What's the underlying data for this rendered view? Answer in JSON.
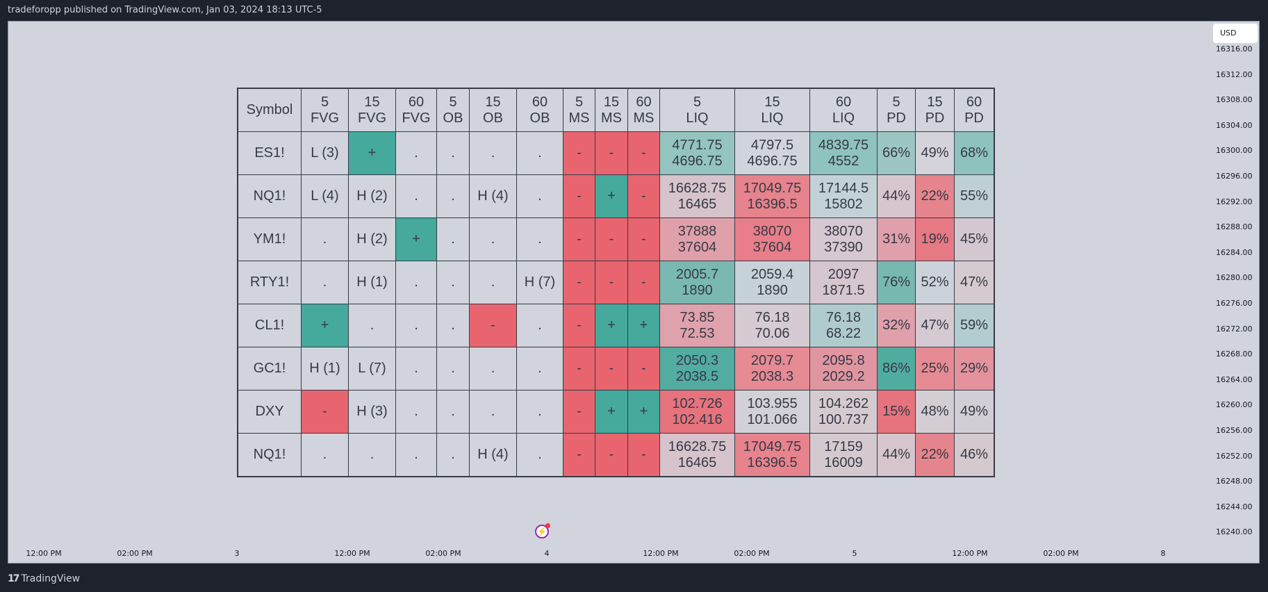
{
  "header": {
    "published": "tradeforopp published on TradingView.com, Jan 03, 2024 18:13 UTC-5"
  },
  "price_axis": {
    "currency": "USD",
    "labels": [
      "16316.00",
      "16312.00",
      "16308.00",
      "16304.00",
      "16300.00",
      "16296.00",
      "16292.00",
      "16288.00",
      "16284.00",
      "16280.00",
      "16276.00",
      "16272.00",
      "16268.00",
      "16264.00",
      "16260.00",
      "16256.00",
      "16252.00",
      "16248.00",
      "16244.00",
      "16240.00"
    ]
  },
  "time_axis": {
    "labels": [
      "12:00 PM",
      "02:00 PM",
      "3",
      "12:00 PM",
      "02:00 PM",
      "4",
      "12:00 PM",
      "02:00 PM",
      "5",
      "12:00 PM",
      "02:00 PM",
      "8"
    ]
  },
  "footer": {
    "brand": "TradingView",
    "logo_mark": "17"
  },
  "colors": {
    "bull": "#45a99b",
    "bear": "#e8656f",
    "neutral": "#d1d4dc",
    "grid": "#363a45",
    "text": "#363a45"
  },
  "table": {
    "headers": [
      "Symbol",
      "5\nFVG",
      "15\nFVG",
      "60\nFVG",
      "5\nOB",
      "15\nOB",
      "60\nOB",
      "5\nMS",
      "15\nMS",
      "60\nMS",
      "5\nLIQ",
      "15\nLIQ",
      "60\nLIQ",
      "5\nPD",
      "15\nPD",
      "60\nPD"
    ],
    "rows": [
      [
        {
          "t": "ES1!"
        },
        {
          "t": "L (3)"
        },
        {
          "t": "+",
          "bg": "#45a99b"
        },
        {
          "t": "."
        },
        {
          "t": "."
        },
        {
          "t": "."
        },
        {
          "t": "."
        },
        {
          "t": "-",
          "bg": "#e8656f"
        },
        {
          "t": "-",
          "bg": "#e8656f"
        },
        {
          "t": "-",
          "bg": "#e8656f"
        },
        {
          "t": "4771.75\n4696.75",
          "bg": "#94c4c0"
        },
        {
          "t": "4797.5\n4696.75",
          "bg": "#d1d4dc"
        },
        {
          "t": "4839.75\n4552",
          "bg": "#8fc3bf"
        },
        {
          "t": "66%",
          "bg": "#9cc6c3"
        },
        {
          "t": "49%",
          "bg": "#d4d2da"
        },
        {
          "t": "68%",
          "bg": "#8ec2be"
        }
      ],
      [
        {
          "t": "NQ1!"
        },
        {
          "t": "L (4)"
        },
        {
          "t": "H (2)"
        },
        {
          "t": "."
        },
        {
          "t": "."
        },
        {
          "t": "H (4)"
        },
        {
          "t": "."
        },
        {
          "t": "-",
          "bg": "#e8656f"
        },
        {
          "t": "+",
          "bg": "#45a99b"
        },
        {
          "t": "-",
          "bg": "#e8656f"
        },
        {
          "t": "16628.75\n16465",
          "bg": "#d6c3cc"
        },
        {
          "t": "17049.75\n16396.5",
          "bg": "#e6838d"
        },
        {
          "t": "17144.5\n15802",
          "bg": "#c3d2d7"
        },
        {
          "t": "44%",
          "bg": "#d8c6ce"
        },
        {
          "t": "22%",
          "bg": "#e6848e"
        },
        {
          "t": "55%",
          "bg": "#bfd0d5"
        }
      ],
      [
        {
          "t": "YM1!"
        },
        {
          "t": "."
        },
        {
          "t": "H (2)"
        },
        {
          "t": "+",
          "bg": "#45a99b"
        },
        {
          "t": "."
        },
        {
          "t": "."
        },
        {
          "t": "."
        },
        {
          "t": "-",
          "bg": "#e8656f"
        },
        {
          "t": "-",
          "bg": "#e8656f"
        },
        {
          "t": "-",
          "bg": "#e8656f"
        },
        {
          "t": "37888\n37604",
          "bg": "#e0a0aa"
        },
        {
          "t": "38070\n37604",
          "bg": "#e87e89"
        },
        {
          "t": "38070\n37390",
          "bg": "#d6c8d0"
        },
        {
          "t": "31%",
          "bg": "#e0a0ab"
        },
        {
          "t": "19%",
          "bg": "#e67984"
        },
        {
          "t": "45%",
          "bg": "#d4c8d0"
        }
      ],
      [
        {
          "t": "RTY1!"
        },
        {
          "t": "."
        },
        {
          "t": "H (1)"
        },
        {
          "t": "."
        },
        {
          "t": "."
        },
        {
          "t": "."
        },
        {
          "t": "H (7)"
        },
        {
          "t": "-",
          "bg": "#e8656f"
        },
        {
          "t": "-",
          "bg": "#e8656f"
        },
        {
          "t": "-",
          "bg": "#e8656f"
        },
        {
          "t": "2005.7\n1890",
          "bg": "#79b9b2"
        },
        {
          "t": "2059.4\n1890",
          "bg": "#c7d1d8"
        },
        {
          "t": "2097\n1871.5",
          "bg": "#d6c6cf"
        },
        {
          "t": "76%",
          "bg": "#77b8b1"
        },
        {
          "t": "52%",
          "bg": "#ccd2d9"
        },
        {
          "t": "47%",
          "bg": "#d6cad1"
        }
      ],
      [
        {
          "t": "CL1!"
        },
        {
          "t": "+",
          "bg": "#45a99b"
        },
        {
          "t": "."
        },
        {
          "t": "."
        },
        {
          "t": "."
        },
        {
          "t": "-",
          "bg": "#e8656f"
        },
        {
          "t": "."
        },
        {
          "t": "-",
          "bg": "#e8656f"
        },
        {
          "t": "+",
          "bg": "#45a99b"
        },
        {
          "t": "+",
          "bg": "#45a99b"
        },
        {
          "t": "73.85\n72.53",
          "bg": "#dfa2ac"
        },
        {
          "t": "76.18\n70.06",
          "bg": "#d6cbd2"
        },
        {
          "t": "76.18\n68.22",
          "bg": "#b0cbcd"
        },
        {
          "t": "32%",
          "bg": "#e0a0aa"
        },
        {
          "t": "47%",
          "bg": "#d5cad1"
        },
        {
          "t": "59%",
          "bg": "#b3ccd0"
        }
      ],
      [
        {
          "t": "GC1!"
        },
        {
          "t": "H (1)"
        },
        {
          "t": "L (7)"
        },
        {
          "t": "."
        },
        {
          "t": "."
        },
        {
          "t": "."
        },
        {
          "t": "."
        },
        {
          "t": "-",
          "bg": "#e8656f"
        },
        {
          "t": "-",
          "bg": "#e8656f"
        },
        {
          "t": "-",
          "bg": "#e8656f"
        },
        {
          "t": "2050.3\n2038.5",
          "bg": "#52ac9f"
        },
        {
          "t": "2079.7\n2038.3",
          "bg": "#e68a94"
        },
        {
          "t": "2095.8\n2029.2",
          "bg": "#e096a0"
        },
        {
          "t": "86%",
          "bg": "#50ac9f"
        },
        {
          "t": "25%",
          "bg": "#e68a94"
        },
        {
          "t": "29%",
          "bg": "#e4939d"
        }
      ],
      [
        {
          "t": "DXY"
        },
        {
          "t": "-",
          "bg": "#e8656f"
        },
        {
          "t": "H (3)"
        },
        {
          "t": "."
        },
        {
          "t": "."
        },
        {
          "t": "."
        },
        {
          "t": "."
        },
        {
          "t": "-",
          "bg": "#e8656f"
        },
        {
          "t": "+",
          "bg": "#45a99b"
        },
        {
          "t": "+",
          "bg": "#45a99b"
        },
        {
          "t": "102.726\n102.416",
          "bg": "#e6737d"
        },
        {
          "t": "103.955\n101.066",
          "bg": "#d2d0d8"
        },
        {
          "t": "104.262\n100.737",
          "bg": "#d6cad1"
        },
        {
          "t": "15%",
          "bg": "#e6737d"
        },
        {
          "t": "48%",
          "bg": "#d4cdd4"
        },
        {
          "t": "49%",
          "bg": "#d3cdd5"
        }
      ],
      [
        {
          "t": "NQ1!"
        },
        {
          "t": "."
        },
        {
          "t": "."
        },
        {
          "t": "."
        },
        {
          "t": "."
        },
        {
          "t": "H (4)"
        },
        {
          "t": "."
        },
        {
          "t": "-",
          "bg": "#e8656f"
        },
        {
          "t": "-",
          "bg": "#e8656f"
        },
        {
          "t": "-",
          "bg": "#e8656f"
        },
        {
          "t": "16628.75\n16465",
          "bg": "#d6c3cc"
        },
        {
          "t": "17049.75\n16396.5",
          "bg": "#e6838d"
        },
        {
          "t": "17159\n16009",
          "bg": "#d5c9d0"
        },
        {
          "t": "44%",
          "bg": "#d7c5cd"
        },
        {
          "t": "22%",
          "bg": "#e6848e"
        },
        {
          "t": "46%",
          "bg": "#d5c9d0"
        }
      ]
    ]
  }
}
